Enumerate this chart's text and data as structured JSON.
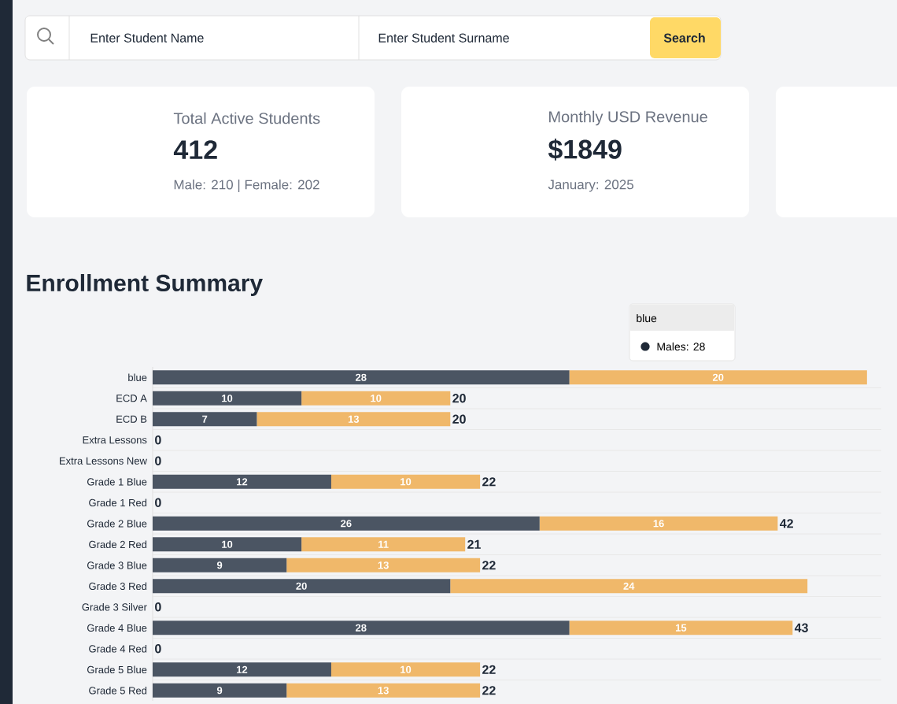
{
  "chart_data": [
    {
      "type": "other",
      "annotations": [
        "Enter Student Name",
        "Enter Student Surname",
        "Search",
        "Total Active Students",
        "412",
        "Male: 210 | Female: 202",
        "Monthly USD Revenue",
        "$1849",
        "January: 2025"
      ]
    },
    {
      "type": "bar",
      "orientation": "horizontal",
      "stacked": true,
      "title": "Enrollment Summary",
      "categories": [
        "blue",
        "ECD A",
        "ECD B",
        "Extra Lessons",
        "Extra Lessons New",
        "Grade 1 Blue",
        "Grade 1 Red",
        "Grade 2 Blue",
        "Grade 2 Red",
        "Grade 3 Blue",
        "Grade 3 Red",
        "Grade 3 Silver",
        "Grade 4 Blue",
        "Grade 4 Red",
        "Grade 5 Blue",
        "Grade 5 Red"
      ],
      "series": [
        {
          "color": "#4b5563",
          "values": [
            28,
            10,
            7,
            0,
            0,
            12,
            0,
            26,
            10,
            9,
            20,
            0,
            28,
            0,
            12,
            9
          ],
          "value_labels": [
            "28",
            "10",
            "7",
            null,
            null,
            "12",
            null,
            "26",
            "10",
            "9",
            "20",
            null,
            "28",
            null,
            "12",
            "9"
          ]
        },
        {
          "color": "#f0b86a",
          "values": [
            20,
            10,
            13,
            0,
            0,
            10,
            0,
            16,
            11,
            13,
            24,
            0,
            15,
            0,
            10,
            13
          ],
          "value_labels": [
            "20",
            "10",
            "13",
            null,
            null,
            "10",
            null,
            "16",
            "11",
            "13",
            "24",
            null,
            "15",
            null,
            "10",
            "13"
          ]
        }
      ],
      "totals": [
        null,
        "20",
        "20",
        "0",
        "0",
        "22",
        "0",
        "42",
        "21",
        "22",
        null,
        "0",
        "43",
        "0",
        "22",
        "22"
      ],
      "annotations": [
        "blue",
        "Males:  28"
      ]
    }
  ]
}
